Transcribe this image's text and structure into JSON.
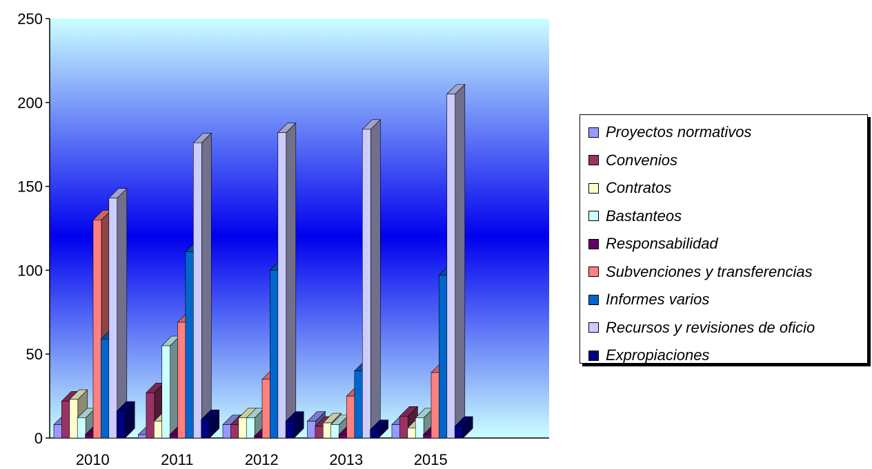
{
  "chart_data": {
    "type": "bar",
    "title": "",
    "xlabel": "",
    "ylabel": "",
    "ylim": [
      0,
      250
    ],
    "yticks": [
      "0",
      "50",
      "100",
      "150",
      "200",
      "250"
    ],
    "categories": [
      "2010",
      "2011",
      "2012",
      "2013",
      "2015"
    ],
    "legend_position": "right",
    "series": [
      {
        "name": "Proyectos normativos",
        "color": "#9999ff",
        "values": [
          8,
          2,
          8,
          10,
          8
        ]
      },
      {
        "name": "Convenios",
        "color": "#993366",
        "values": [
          22,
          27,
          8,
          7,
          13
        ]
      },
      {
        "name": "Contratos",
        "color": "#ffffcc",
        "values": [
          23,
          10,
          12,
          9,
          6
        ]
      },
      {
        "name": "Bastanteos",
        "color": "#ccffff",
        "values": [
          12,
          55,
          12,
          8,
          12
        ]
      },
      {
        "name": "Responsabilidad",
        "color": "#660066",
        "values": [
          2,
          2,
          1,
          2,
          2
        ]
      },
      {
        "name": "Subvenciones y transferencias",
        "color": "#ff8080",
        "values": [
          130,
          69,
          35,
          25,
          39
        ]
      },
      {
        "name": "Informes varios",
        "color": "#0066cc",
        "values": [
          59,
          111,
          100,
          40,
          97
        ]
      },
      {
        "name": "Recursos y revisiones de oficio",
        "color": "#ccccff",
        "values": [
          143,
          176,
          182,
          184,
          205
        ]
      },
      {
        "name": "Expropiaciones",
        "color": "#000080",
        "values": [
          16,
          11,
          10,
          5,
          7
        ]
      }
    ]
  }
}
